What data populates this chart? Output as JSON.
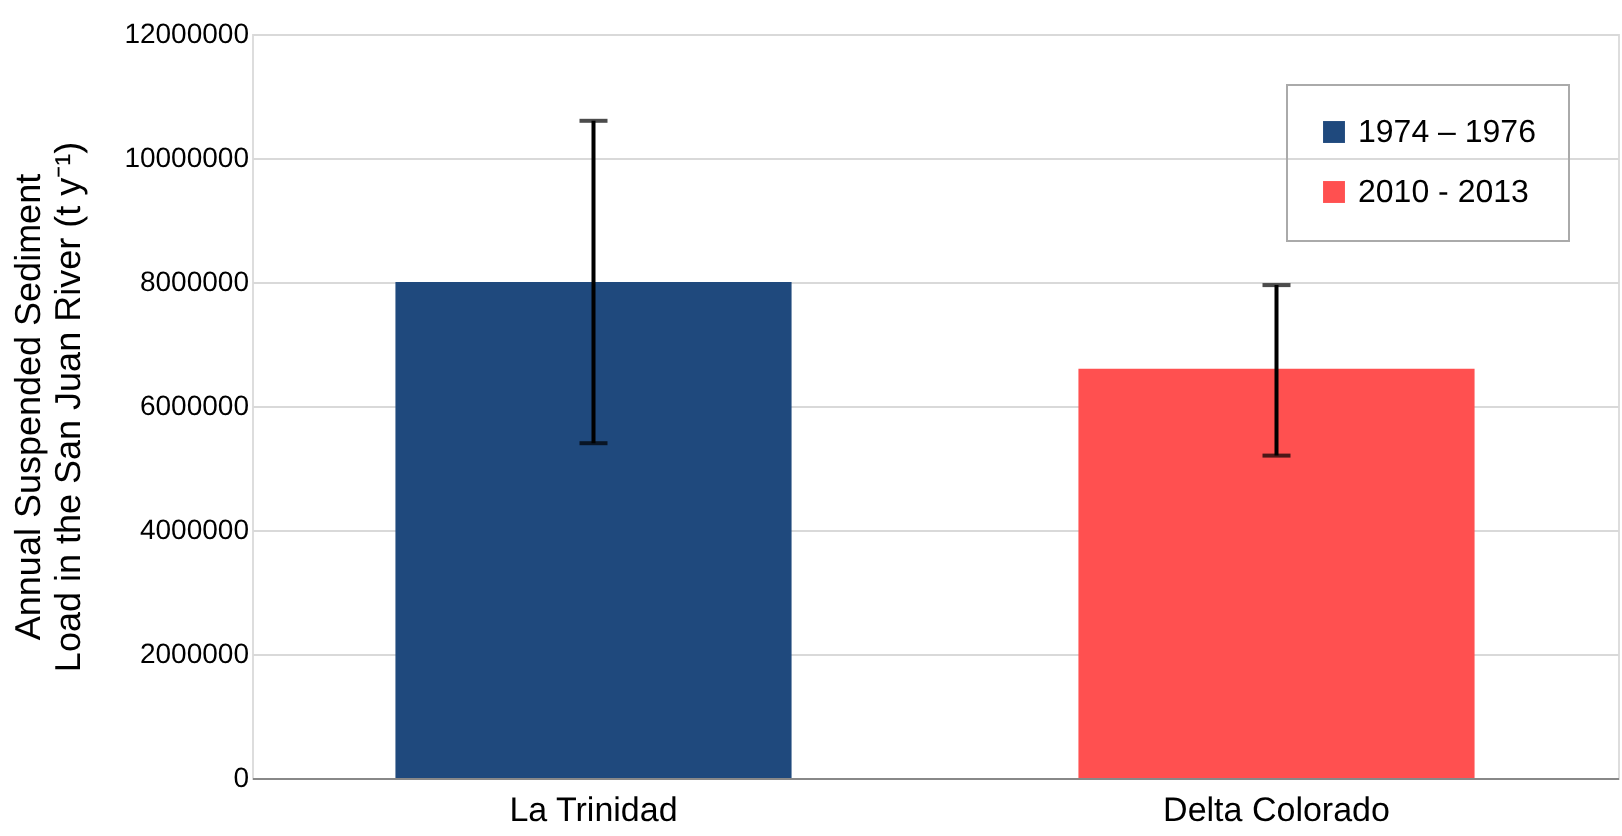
{
  "chart_data": {
    "type": "bar",
    "ylabel": "Annual Suspended Sediment\nLoad in the San Juan River (t y⁻¹)",
    "categories": [
      "La Trinidad",
      "Delta Colorado"
    ],
    "series": [
      {
        "name": "1974 – 1976",
        "color": "#1f497d",
        "values": [
          8000000,
          null
        ],
        "errors": [
          [
            5400000,
            10600000
          ],
          null
        ]
      },
      {
        "name": "2010 - 2013",
        "color": "#ff5050",
        "values": [
          null,
          6600000
        ],
        "errors": [
          null,
          [
            5200000,
            7950000
          ]
        ]
      }
    ],
    "ylim": [
      0,
      12000000
    ],
    "yticks": [
      0,
      2000000,
      4000000,
      6000000,
      8000000,
      10000000,
      12000000
    ],
    "grid": "y",
    "legend": "top right"
  }
}
